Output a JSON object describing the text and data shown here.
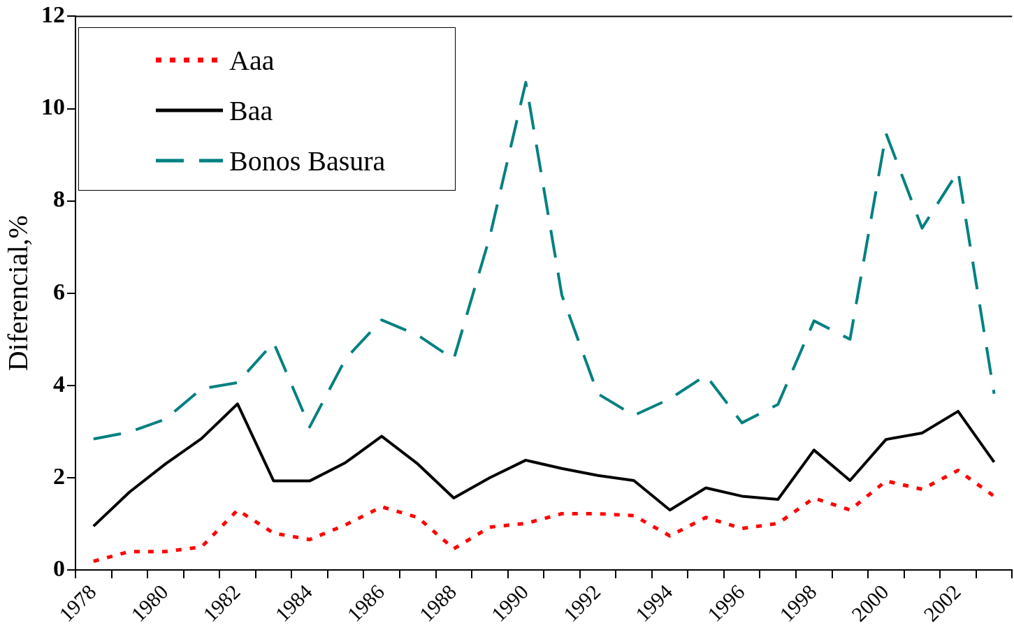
{
  "chart_data": {
    "type": "line",
    "ylabel": "Diferencial,%",
    "categories": [
      "1978",
      null,
      "1980",
      null,
      "1982",
      null,
      "1984",
      null,
      "1986",
      null,
      "1988",
      null,
      "1990",
      null,
      "1992",
      null,
      "1994",
      null,
      "1996",
      null,
      "1998",
      null,
      "2000",
      null,
      "2002",
      null
    ],
    "series": [
      {
        "name": "Aaa",
        "color": "#ff0000",
        "line_style": "dotted",
        "values": [
          0.19,
          0.4,
          0.4,
          0.5,
          1.3,
          0.8,
          0.66,
          0.98,
          1.37,
          1.14,
          0.46,
          0.93,
          1.01,
          1.22,
          1.22,
          1.18,
          0.74,
          1.14,
          0.9,
          1.01,
          1.56,
          1.3,
          1.93,
          1.75,
          2.16,
          1.6
        ]
      },
      {
        "name": "Baa",
        "color": "#000000",
        "line_style": "solid",
        "values": [
          0.95,
          1.69,
          2.3,
          2.85,
          3.6,
          1.93,
          1.93,
          2.33,
          2.9,
          2.3,
          1.56,
          2.0,
          2.38,
          2.2,
          2.05,
          1.94,
          1.3,
          1.78,
          1.6,
          1.53,
          2.6,
          1.94,
          2.83,
          2.97,
          3.44,
          2.34
        ]
      },
      {
        "name": "Bonos Basura",
        "color": "#008080",
        "line_style": "dashed",
        "values": [
          2.84,
          2.99,
          3.27,
          3.93,
          4.06,
          4.93,
          3.1,
          4.58,
          5.42,
          5.09,
          4.57,
          7.22,
          10.57,
          5.96,
          3.82,
          3.35,
          3.71,
          4.22,
          3.19,
          3.59,
          5.4,
          5.0,
          9.46,
          7.41,
          8.64,
          3.82
        ]
      }
    ],
    "ylim": [
      0,
      12
    ],
    "yticks": [
      0,
      2,
      4,
      6,
      8,
      10,
      12
    ],
    "grid": false,
    "legend": "top left",
    "marker": "none"
  }
}
